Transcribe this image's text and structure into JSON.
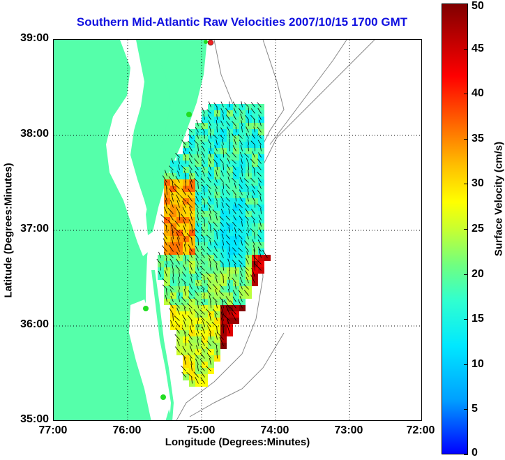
{
  "title": "Southern Mid-Atlantic Raw Velocities 2007/10/15 1700 GMT",
  "axes": {
    "xlabel": "Longitude (Degrees:Minutes)",
    "ylabel": "Latitude (Degrees:Minutes)",
    "x_ticks": [
      "77:00",
      "76:00",
      "75:00",
      "74:00",
      "73:00",
      "72:00"
    ],
    "y_ticks": [
      "39:00",
      "38:00",
      "37:00",
      "36:00",
      "35:00"
    ]
  },
  "colorbar": {
    "label": "Surface Velocity (cm/s)",
    "ticks": [
      "0",
      "5",
      "10",
      "15",
      "20",
      "25",
      "30",
      "35",
      "40",
      "45",
      "50"
    ]
  },
  "map_extent": {
    "lon_range": [
      -77,
      -72
    ],
    "lat_range": [
      35,
      39
    ]
  },
  "colors": {
    "land": "#55ffaa",
    "title": "#1010e0",
    "site_marker": "#22dd22",
    "site_marker_alt": "#ee2222"
  }
}
